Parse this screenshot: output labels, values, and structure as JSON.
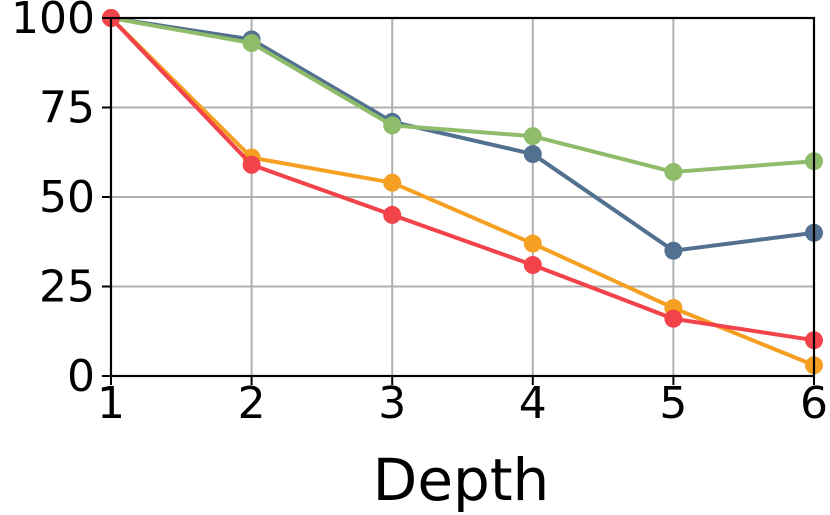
{
  "chart_data": {
    "type": "line",
    "title": "",
    "xlabel": "Depth",
    "ylabel": "",
    "x": [
      1,
      2,
      3,
      4,
      5,
      6
    ],
    "xlim": [
      1,
      6
    ],
    "ylim": [
      0,
      100
    ],
    "xticks": [
      1,
      2,
      3,
      4,
      5,
      6
    ],
    "yticks": [
      0,
      25,
      50,
      75,
      100
    ],
    "grid": true,
    "legend": "none",
    "series": [
      {
        "color": "#52708f",
        "values": [
          100,
          94,
          71,
          62,
          35,
          40
        ]
      },
      {
        "color": "#8fbc6a",
        "values": [
          100,
          93,
          70,
          67,
          57,
          60
        ]
      },
      {
        "color": "#f5a023",
        "values": [
          100,
          61,
          54,
          37,
          19,
          3
        ]
      },
      {
        "color": "#f2434a",
        "values": [
          100,
          59,
          45,
          31,
          16,
          10
        ]
      }
    ]
  }
}
